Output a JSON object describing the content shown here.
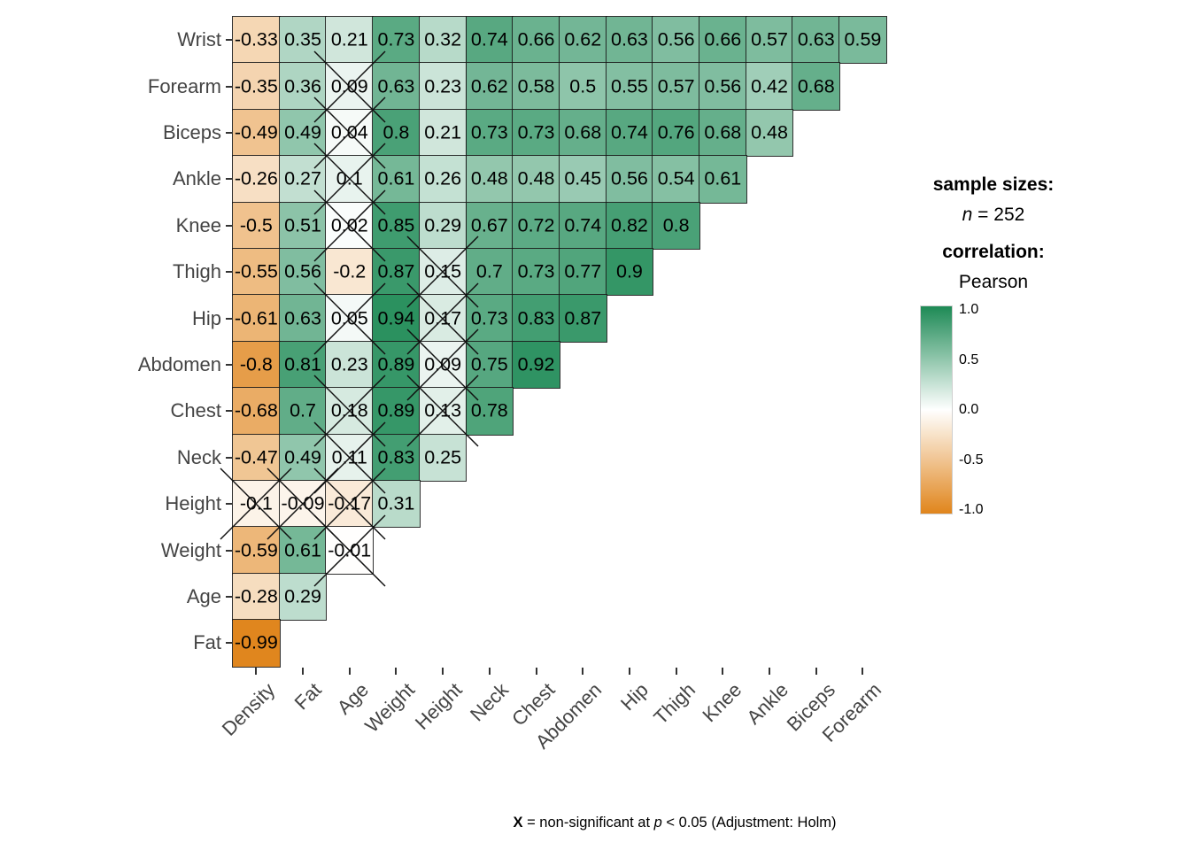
{
  "legend": {
    "sample_sizes_label": "sample sizes:",
    "n_symbol": "n",
    "n_value": " = 252",
    "correlation_label": "correlation:",
    "method": "Pearson",
    "colorbar_ticks": [
      {
        "value": 1.0,
        "label": "1.0"
      },
      {
        "value": 0.5,
        "label": "0.5"
      },
      {
        "value": 0.0,
        "label": "0.0"
      },
      {
        "value": -0.5,
        "label": "-0.5"
      },
      {
        "value": -1.0,
        "label": "-1.0"
      }
    ]
  },
  "caption": {
    "x_symbol": "X",
    "part1": " = non-significant at ",
    "p_symbol": "p",
    "part2": " < 0.05 (Adjustment: Holm)"
  },
  "chart_data": {
    "type": "heatmap",
    "subtype": "correlation-matrix-lower-triangle",
    "correlation_method": "Pearson",
    "sample_size": 252,
    "value_range": [
      -1,
      1
    ],
    "x_categories": [
      "Density",
      "Fat",
      "Age",
      "Weight",
      "Height",
      "Neck",
      "Chest",
      "Abdomen",
      "Hip",
      "Thigh",
      "Knee",
      "Ankle",
      "Biceps",
      "Forearm"
    ],
    "y_categories": [
      "Wrist",
      "Forearm",
      "Biceps",
      "Ankle",
      "Knee",
      "Thigh",
      "Hip",
      "Abdomen",
      "Chest",
      "Neck",
      "Height",
      "Weight",
      "Age",
      "Fat"
    ],
    "rows": [
      {
        "label": "Wrist",
        "values": [
          -0.33,
          0.35,
          0.21,
          0.73,
          0.32,
          0.74,
          0.66,
          0.62,
          0.63,
          0.56,
          0.66,
          0.57,
          0.63,
          0.59
        ]
      },
      {
        "label": "Forearm",
        "values": [
          -0.35,
          0.36,
          0.09,
          0.63,
          0.23,
          0.62,
          0.58,
          0.5,
          0.55,
          0.57,
          0.56,
          0.42,
          0.68
        ]
      },
      {
        "label": "Biceps",
        "values": [
          -0.49,
          0.49,
          0.04,
          0.8,
          0.21,
          0.73,
          0.73,
          0.68,
          0.74,
          0.76,
          0.68,
          0.48
        ]
      },
      {
        "label": "Ankle",
        "values": [
          -0.26,
          0.27,
          0.1,
          0.61,
          0.26,
          0.48,
          0.48,
          0.45,
          0.56,
          0.54,
          0.61
        ]
      },
      {
        "label": "Knee",
        "values": [
          -0.5,
          0.51,
          0.02,
          0.85,
          0.29,
          0.67,
          0.72,
          0.74,
          0.82,
          0.8
        ]
      },
      {
        "label": "Thigh",
        "values": [
          -0.55,
          0.56,
          -0.2,
          0.87,
          0.15,
          0.7,
          0.73,
          0.77,
          0.9
        ]
      },
      {
        "label": "Hip",
        "values": [
          -0.61,
          0.63,
          0.05,
          0.94,
          0.17,
          0.73,
          0.83,
          0.87
        ]
      },
      {
        "label": "Abdomen",
        "values": [
          -0.8,
          0.81,
          0.23,
          0.89,
          0.09,
          0.75,
          0.92
        ]
      },
      {
        "label": "Chest",
        "values": [
          -0.68,
          0.7,
          0.18,
          0.89,
          0.13,
          0.78
        ]
      },
      {
        "label": "Neck",
        "values": [
          -0.47,
          0.49,
          0.11,
          0.83,
          0.25
        ]
      },
      {
        "label": "Height",
        "values": [
          -0.1,
          -0.09,
          -0.17,
          0.31
        ]
      },
      {
        "label": "Weight",
        "values": [
          -0.59,
          0.61,
          -0.01
        ]
      },
      {
        "label": "Age",
        "values": [
          -0.28,
          0.29
        ]
      },
      {
        "label": "Fat",
        "values": [
          -0.99
        ]
      }
    ],
    "non_significant_cells": [
      [
        "Forearm",
        "Age"
      ],
      [
        "Biceps",
        "Age"
      ],
      [
        "Ankle",
        "Age"
      ],
      [
        "Knee",
        "Age"
      ],
      [
        "Hip",
        "Age"
      ],
      [
        "Chest",
        "Age"
      ],
      [
        "Neck",
        "Age"
      ],
      [
        "Weight",
        "Age"
      ],
      [
        "Thigh",
        "Height"
      ],
      [
        "Hip",
        "Height"
      ],
      [
        "Abdomen",
        "Height"
      ],
      [
        "Chest",
        "Height"
      ],
      [
        "Height",
        "Density"
      ],
      [
        "Height",
        "Fat"
      ],
      [
        "Height",
        "Age"
      ]
    ],
    "colors": {
      "negative_end": "#e0851c",
      "zero": "#ffffff",
      "positive_end": "#1d8a55",
      "axis_text": "#444444",
      "cell_text": "#000000",
      "grid": "#191919"
    },
    "legend_position": "right",
    "grid": true
  }
}
